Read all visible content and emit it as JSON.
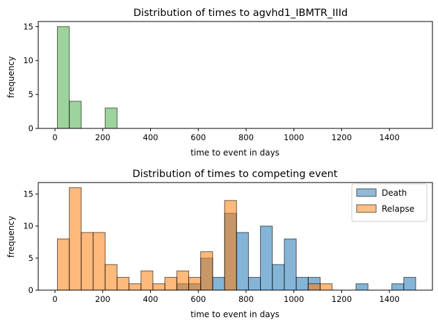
{
  "chart_data": [
    {
      "type": "bar",
      "title": "Distribution of times to agvhd1_IBMTR_IIId",
      "xlabel": "time to event in days",
      "ylabel": "frequency",
      "xlim": [
        -70,
        1580
      ],
      "ylim": [
        0,
        15.75
      ],
      "xticks": [
        0,
        200,
        400,
        600,
        800,
        1000,
        1200,
        1400
      ],
      "yticks": [
        0,
        5,
        10,
        15
      ],
      "bin_width": 50,
      "grid": false,
      "series": [
        {
          "color": "#4daf4a",
          "bins": [
            {
              "x0": 10,
              "x1": 60,
              "value": 15
            },
            {
              "x0": 60,
              "x1": 110,
              "value": 4
            },
            {
              "x0": 110,
              "x1": 160,
              "value": 0
            },
            {
              "x0": 160,
              "x1": 210,
              "value": 0
            },
            {
              "x0": 210,
              "x1": 260,
              "value": 3
            },
            {
              "x0": 260,
              "x1": 310,
              "value": 0
            },
            {
              "x0": 310,
              "x1": 360,
              "value": 0
            },
            {
              "x0": 360,
              "x1": 410,
              "value": 0
            },
            {
              "x0": 410,
              "x1": 460,
              "value": 0
            },
            {
              "x0": 460,
              "x1": 510,
              "value": 0
            },
            {
              "x0": 510,
              "x1": 560,
              "value": 0
            },
            {
              "x0": 560,
              "x1": 610,
              "value": 0
            },
            {
              "x0": 610,
              "x1": 660,
              "value": 0
            },
            {
              "x0": 660,
              "x1": 710,
              "value": 0
            },
            {
              "x0": 710,
              "x1": 760,
              "value": 0
            },
            {
              "x0": 760,
              "x1": 810,
              "value": 0
            },
            {
              "x0": 810,
              "x1": 860,
              "value": 0
            },
            {
              "x0": 860,
              "x1": 910,
              "value": 0
            },
            {
              "x0": 910,
              "x1": 960,
              "value": 0
            },
            {
              "x0": 960,
              "x1": 1010,
              "value": 0
            },
            {
              "x0": 1010,
              "x1": 1060,
              "value": 0
            },
            {
              "x0": 1060,
              "x1": 1110,
              "value": 0
            },
            {
              "x0": 1110,
              "x1": 1160,
              "value": 0
            },
            {
              "x0": 1160,
              "x1": 1210,
              "value": 0
            },
            {
              "x0": 1210,
              "x1": 1260,
              "value": 0
            },
            {
              "x0": 1260,
              "x1": 1310,
              "value": 0
            },
            {
              "x0": 1310,
              "x1": 1360,
              "value": 0
            },
            {
              "x0": 1360,
              "x1": 1410,
              "value": 0
            },
            {
              "x0": 1410,
              "x1": 1460,
              "value": 0
            },
            {
              "x0": 1460,
              "x1": 1510,
              "value": 0
            }
          ]
        }
      ]
    },
    {
      "type": "bar",
      "title": "Distribution of times to competing event",
      "xlabel": "time to event in days",
      "ylabel": "frequency",
      "xlim": [
        -70,
        1580
      ],
      "ylim": [
        0,
        16.8
      ],
      "xticks": [
        0,
        200,
        400,
        600,
        800,
        1000,
        1200,
        1400
      ],
      "yticks": [
        0,
        5,
        10,
        15
      ],
      "bin_width": 50,
      "grid": false,
      "legend": "top-right",
      "series": [
        {
          "name": "Death",
          "color": "#1f77b4",
          "bins": [
            {
              "x0": 510,
              "x1": 560,
              "value": 1
            },
            {
              "x0": 560,
              "x1": 610,
              "value": 1
            },
            {
              "x0": 610,
              "x1": 660,
              "value": 5
            },
            {
              "x0": 660,
              "x1": 710,
              "value": 2
            },
            {
              "x0": 710,
              "x1": 760,
              "value": 12
            },
            {
              "x0": 760,
              "x1": 810,
              "value": 9
            },
            {
              "x0": 810,
              "x1": 860,
              "value": 2
            },
            {
              "x0": 860,
              "x1": 910,
              "value": 10
            },
            {
              "x0": 910,
              "x1": 960,
              "value": 4
            },
            {
              "x0": 960,
              "x1": 1010,
              "value": 8
            },
            {
              "x0": 1010,
              "x1": 1060,
              "value": 2
            },
            {
              "x0": 1060,
              "x1": 1110,
              "value": 2
            },
            {
              "x0": 1260,
              "x1": 1310,
              "value": 1
            },
            {
              "x0": 1410,
              "x1": 1460,
              "value": 1
            },
            {
              "x0": 1460,
              "x1": 1510,
              "value": 2
            }
          ]
        },
        {
          "name": "Relapse",
          "color": "#ff7f0e",
          "bins": [
            {
              "x0": 10,
              "x1": 60,
              "value": 8
            },
            {
              "x0": 60,
              "x1": 110,
              "value": 16
            },
            {
              "x0": 110,
              "x1": 160,
              "value": 9
            },
            {
              "x0": 160,
              "x1": 210,
              "value": 9
            },
            {
              "x0": 210,
              "x1": 260,
              "value": 4
            },
            {
              "x0": 260,
              "x1": 310,
              "value": 2
            },
            {
              "x0": 310,
              "x1": 360,
              "value": 1
            },
            {
              "x0": 360,
              "x1": 410,
              "value": 3
            },
            {
              "x0": 410,
              "x1": 460,
              "value": 1
            },
            {
              "x0": 460,
              "x1": 510,
              "value": 2
            },
            {
              "x0": 510,
              "x1": 560,
              "value": 3
            },
            {
              "x0": 560,
              "x1": 610,
              "value": 2
            },
            {
              "x0": 610,
              "x1": 660,
              "value": 6
            },
            {
              "x0": 660,
              "x1": 710,
              "value": 0
            },
            {
              "x0": 710,
              "x1": 760,
              "value": 14
            },
            {
              "x0": 760,
              "x1": 810,
              "value": 0
            },
            {
              "x0": 810,
              "x1": 860,
              "value": 0
            },
            {
              "x0": 860,
              "x1": 910,
              "value": 0
            },
            {
              "x0": 910,
              "x1": 960,
              "value": 0
            },
            {
              "x0": 960,
              "x1": 1010,
              "value": 0
            },
            {
              "x0": 1010,
              "x1": 1060,
              "value": 0
            },
            {
              "x0": 1060,
              "x1": 1110,
              "value": 1
            },
            {
              "x0": 1110,
              "x1": 1160,
              "value": 1
            }
          ]
        }
      ]
    }
  ]
}
